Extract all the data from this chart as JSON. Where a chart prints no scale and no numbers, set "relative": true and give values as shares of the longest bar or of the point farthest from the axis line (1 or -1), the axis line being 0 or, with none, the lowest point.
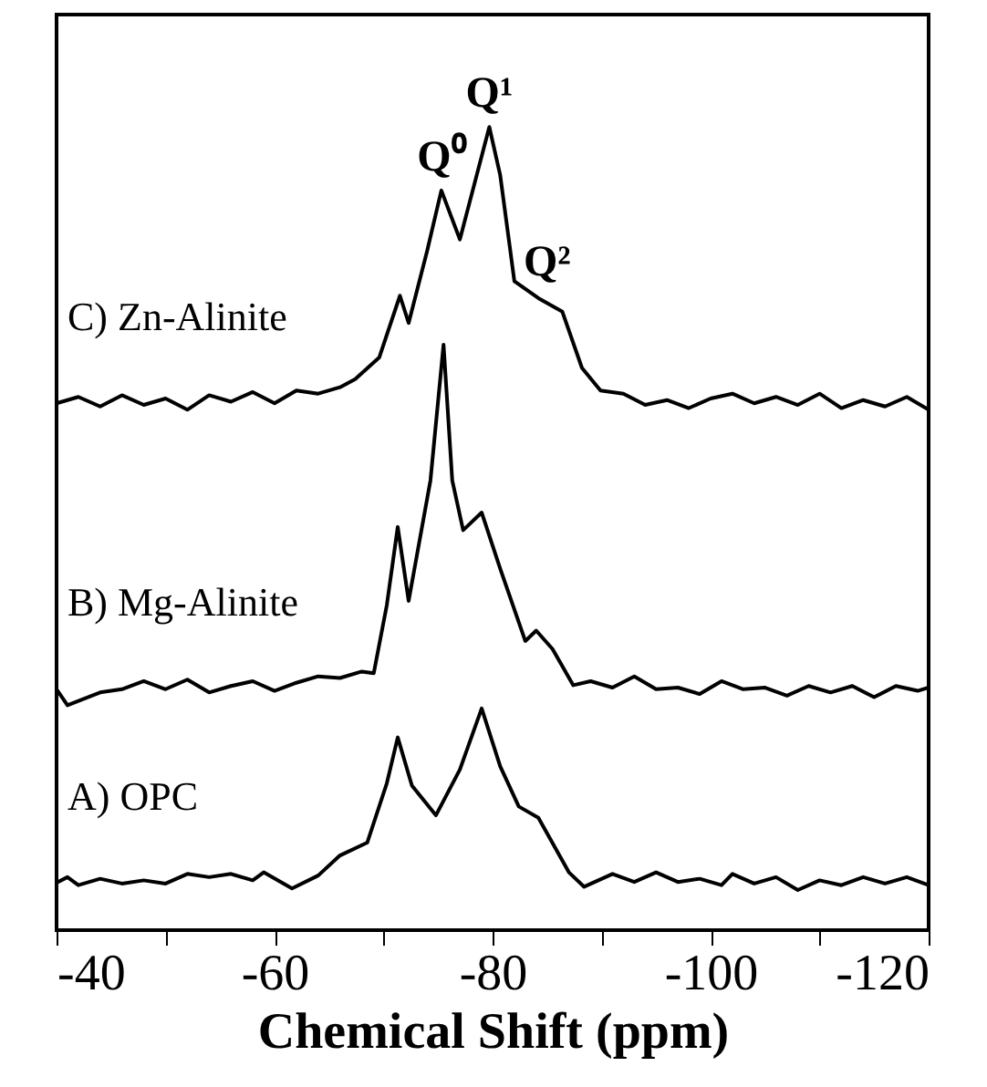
{
  "chart_data": {
    "type": "line",
    "relative": true,
    "xlabel": "Chemical Shift (ppm)",
    "xlim": [
      -40,
      -120
    ],
    "xticks": [
      -40,
      {
        "value": -50,
        "label": null
      },
      -60,
      {
        "value": -70,
        "label": null
      },
      -80,
      {
        "value": -90,
        "label": null
      },
      -100,
      {
        "value": -110,
        "label": null
      },
      -120
    ],
    "grid": false,
    "tick_labels": "x",
    "marker": "none",
    "line_style": "solid",
    "annotations": [
      {
        "text": "Q⁰",
        "x": -75.3,
        "y": 0.921
      },
      {
        "text": "Q¹",
        "x": -79.7,
        "y": 1
      },
      {
        "text": "Q²",
        "x": -85,
        "y": 0.79
      }
    ],
    "series": [
      {
        "name": "C) Zn-Alinite",
        "color": "#000000",
        "x": [
          -40,
          -42,
          -44,
          -46,
          -48,
          -50,
          -52,
          -54,
          -56,
          -58,
          -60,
          -62,
          -64,
          -66,
          -67.4,
          -69.6,
          -71.5,
          -72.3,
          -74.0,
          -75.3,
          -77.0,
          -79.7,
          -80.7,
          -82.0,
          -84.2,
          -86.4,
          -88.2,
          -89.9,
          -92,
          -94,
          -96,
          -98,
          -100,
          -102,
          -104,
          -106,
          -108,
          -110,
          -112,
          -114,
          -116,
          -118,
          -120
        ],
        "values": [
          0.656,
          0.664,
          0.652,
          0.666,
          0.654,
          0.662,
          0.648,
          0.666,
          0.658,
          0.67,
          0.656,
          0.672,
          0.668,
          0.676,
          0.686,
          0.713,
          0.79,
          0.756,
          0.846,
          0.921,
          0.86,
          1,
          0.94,
          0.808,
          0.787,
          0.77,
          0.7,
          0.672,
          0.668,
          0.654,
          0.66,
          0.65,
          0.662,
          0.668,
          0.656,
          0.664,
          0.654,
          0.668,
          0.65,
          0.66,
          0.652,
          0.664,
          0.648
        ]
      },
      {
        "name": "B) Mg-Alinite",
        "color": "#000000",
        "x": [
          -40,
          -41,
          -44,
          -46,
          -48,
          -50,
          -52,
          -54,
          -56,
          -58,
          -60,
          -62,
          -64,
          -66,
          -68,
          -69.1,
          -70.3,
          -71.3,
          -72.3,
          -74.3,
          -75.5,
          -76.3,
          -77.3,
          -79.0,
          -80.7,
          -83.0,
          -84.0,
          -85.5,
          -87.4,
          -89,
          -91,
          -93,
          -95,
          -97,
          -99,
          -101,
          -103,
          -105,
          -107,
          -109,
          -111,
          -113,
          -115,
          -117,
          -119,
          -120
        ],
        "values": [
          0.3,
          0.28,
          0.296,
          0.3,
          0.31,
          0.3,
          0.312,
          0.296,
          0.304,
          0.31,
          0.298,
          0.308,
          0.316,
          0.314,
          0.322,
          0.32,
          0.405,
          0.502,
          0.41,
          0.56,
          0.729,
          0.56,
          0.498,
          0.52,
          0.45,
          0.36,
          0.373,
          0.35,
          0.305,
          0.31,
          0.302,
          0.316,
          0.3,
          0.302,
          0.294,
          0.31,
          0.3,
          0.302,
          0.292,
          0.304,
          0.296,
          0.304,
          0.29,
          0.304,
          0.298,
          0.302
        ]
      },
      {
        "name": "A) OPC",
        "color": "#000000",
        "x": [
          -40,
          -41,
          -42,
          -44,
          -46,
          -48,
          -50,
          -52,
          -54,
          -56,
          -58,
          -59,
          -61.6,
          -64,
          -66.0,
          -68.5,
          -70.3,
          -71.3,
          -72.6,
          -74.8,
          -77,
          -79.0,
          -80.7,
          -82.4,
          -84.2,
          -87.0,
          -88.4,
          -91,
          -93,
          -95,
          -97,
          -99,
          -101,
          -102,
          -104,
          -106,
          -108,
          -110,
          -112,
          -114,
          -116,
          -118,
          -120
        ],
        "values": [
          0.059,
          0.066,
          0.056,
          0.064,
          0.058,
          0.062,
          0.058,
          0.07,
          0.066,
          0.07,
          0.062,
          0.072,
          0.052,
          0.068,
          0.093,
          0.109,
          0.183,
          0.24,
          0.18,
          0.143,
          0.2,
          0.276,
          0.204,
          0.154,
          0.14,
          0.072,
          0.054,
          0.07,
          0.06,
          0.072,
          0.06,
          0.064,
          0.056,
          0.07,
          0.058,
          0.066,
          0.05,
          0.062,
          0.056,
          0.066,
          0.058,
          0.066,
          0.056
        ]
      }
    ]
  }
}
